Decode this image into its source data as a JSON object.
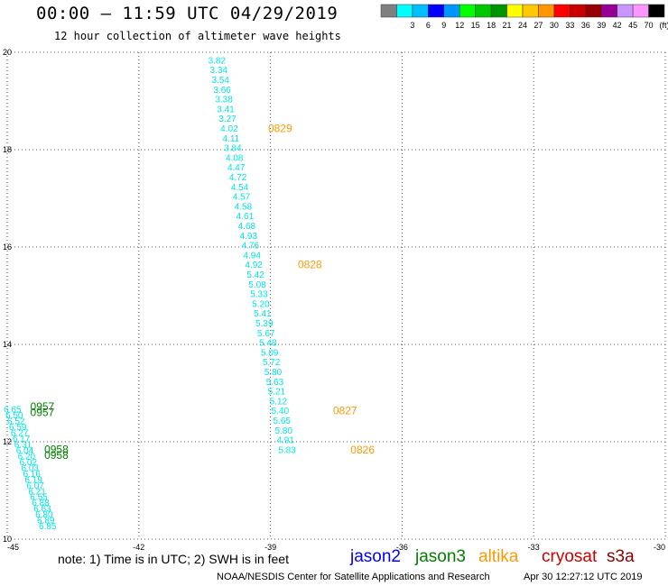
{
  "header": {
    "title": "00:00 – 11:59 UTC 04/29/2019",
    "subtitle": "12 hour collection of altimeter wave heights"
  },
  "legend": {
    "swatches": [
      {
        "color": "#7f7f7f",
        "label": ""
      },
      {
        "color": "#00ffff",
        "label": "3"
      },
      {
        "color": "#00bfff",
        "label": "6"
      },
      {
        "color": "#0000ff",
        "label": "9"
      },
      {
        "color": "#0096ff",
        "label": "12"
      },
      {
        "color": "#00ff00",
        "label": "15"
      },
      {
        "color": "#00c800",
        "label": "18"
      },
      {
        "color": "#009600",
        "label": "21"
      },
      {
        "color": "#ffff00",
        "label": "24"
      },
      {
        "color": "#ffc800",
        "label": "27"
      },
      {
        "color": "#ff9600",
        "label": "30"
      },
      {
        "color": "#ff0000",
        "label": "33"
      },
      {
        "color": "#c80000",
        "label": "36"
      },
      {
        "color": "#960000",
        "label": "39"
      },
      {
        "color": "#960096",
        "label": "42"
      },
      {
        "color": "#c896ff",
        "label": "45"
      },
      {
        "color": "#ff96ff",
        "label": "70"
      },
      {
        "color": "#000000",
        "label": "(ft)"
      }
    ]
  },
  "footer": {
    "note": "note: 1) Time is in UTC; 2) SWH is in feet",
    "credit": "NOAA/NESDIS Center for Satellite Applications and Research",
    "timestamp": "Apr 30 12:27:12 UTC 2019",
    "satellites": [
      {
        "name": "jason2",
        "color": "#0000ff"
      },
      {
        "name": "jason3",
        "color": "#008000"
      },
      {
        "name": "altika",
        "color": "#ff9900"
      },
      {
        "name": "cryosat",
        "color": "#cc0000"
      },
      {
        "name": "s3a",
        "color": "#8b0000"
      }
    ]
  },
  "chart_data": {
    "type": "scatter",
    "title": "00:00 – 11:59 UTC 04/29/2019",
    "subtitle": "12 hour collection of altimeter wave heights",
    "xlim": [
      -45,
      -30
    ],
    "ylim": [
      10,
      20
    ],
    "x_ticks": [
      "-45",
      "-42",
      "-39",
      "-36",
      "-33",
      "-30"
    ],
    "y_ticks": [
      "10",
      "12",
      "14",
      "16",
      "18",
      "20"
    ],
    "grid": true,
    "point_color": "#00e5e5",
    "time_color_altika": "#ff9900",
    "time_color_jason3": "#008000",
    "track_a": {
      "points": [
        {
          "x": -40.22,
          "y": 19.82,
          "v": "3.82"
        },
        {
          "x": -40.18,
          "y": 19.62,
          "v": "3.34"
        },
        {
          "x": -40.14,
          "y": 19.42,
          "v": "3.54"
        },
        {
          "x": -40.1,
          "y": 19.22,
          "v": "3.66"
        },
        {
          "x": -40.06,
          "y": 19.02,
          "v": "3.38"
        },
        {
          "x": -40.02,
          "y": 18.82,
          "v": "3.41"
        },
        {
          "x": -39.98,
          "y": 18.62,
          "v": "3.27"
        },
        {
          "x": -39.94,
          "y": 18.42,
          "v": "4.02"
        },
        {
          "x": -39.9,
          "y": 18.22,
          "v": "4.11"
        },
        {
          "x": -39.86,
          "y": 18.02,
          "v": "3.84"
        },
        {
          "x": -39.82,
          "y": 17.82,
          "v": "4.08"
        },
        {
          "x": -39.78,
          "y": 17.62,
          "v": "4.47"
        },
        {
          "x": -39.74,
          "y": 17.42,
          "v": "4.72"
        },
        {
          "x": -39.7,
          "y": 17.22,
          "v": "4.54"
        },
        {
          "x": -39.66,
          "y": 17.02,
          "v": "4.57"
        },
        {
          "x": -39.62,
          "y": 16.82,
          "v": "4.58"
        },
        {
          "x": -39.58,
          "y": 16.62,
          "v": "4.61"
        },
        {
          "x": -39.54,
          "y": 16.42,
          "v": "4.68"
        },
        {
          "x": -39.5,
          "y": 16.22,
          "v": "4.93"
        },
        {
          "x": -39.46,
          "y": 16.02,
          "v": "4.76"
        },
        {
          "x": -39.42,
          "y": 15.82,
          "v": "4.94"
        },
        {
          "x": -39.38,
          "y": 15.62,
          "v": "4.92"
        },
        {
          "x": -39.34,
          "y": 15.42,
          "v": "5.42"
        },
        {
          "x": -39.3,
          "y": 15.22,
          "v": "5.08"
        },
        {
          "x": -39.26,
          "y": 15.02,
          "v": "5.33"
        },
        {
          "x": -39.22,
          "y": 14.82,
          "v": "5.20"
        },
        {
          "x": -39.18,
          "y": 14.62,
          "v": "5.41"
        },
        {
          "x": -39.14,
          "y": 14.42,
          "v": "5.39"
        },
        {
          "x": -39.1,
          "y": 14.22,
          "v": "5.67"
        },
        {
          "x": -39.06,
          "y": 14.02,
          "v": "5.48"
        },
        {
          "x": -39.02,
          "y": 13.82,
          "v": "5.09"
        },
        {
          "x": -38.98,
          "y": 13.62,
          "v": "5.72"
        },
        {
          "x": -38.94,
          "y": 13.42,
          "v": "5.80"
        },
        {
          "x": -38.9,
          "y": 13.22,
          "v": "5.63"
        },
        {
          "x": -38.86,
          "y": 13.02,
          "v": "5.21"
        },
        {
          "x": -38.82,
          "y": 12.82,
          "v": "5.12"
        },
        {
          "x": -38.78,
          "y": 12.62,
          "v": "5.40"
        },
        {
          "x": -38.74,
          "y": 12.42,
          "v": "5.65"
        },
        {
          "x": -38.7,
          "y": 12.22,
          "v": "5.80"
        },
        {
          "x": -38.66,
          "y": 12.02,
          "v": "4.91"
        },
        {
          "x": -38.62,
          "y": 11.82,
          "v": "5.83"
        }
      ],
      "times": [
        {
          "x": -38.78,
          "y": 18.42,
          "v": "0829"
        },
        {
          "x": -38.1,
          "y": 15.62,
          "v": "0828"
        },
        {
          "x": -37.3,
          "y": 12.62,
          "v": "0827"
        },
        {
          "x": -36.9,
          "y": 11.82,
          "v": "0826"
        }
      ]
    },
    "track_b": {
      "points": [
        {
          "x": -44.88,
          "y": 12.65,
          "v": "6.65"
        },
        {
          "x": -44.84,
          "y": 12.53,
          "v": "6.50"
        },
        {
          "x": -44.8,
          "y": 12.41,
          "v": "6.52"
        },
        {
          "x": -44.76,
          "y": 12.29,
          "v": "6.59"
        },
        {
          "x": -44.72,
          "y": 12.17,
          "v": "6.27"
        },
        {
          "x": -44.68,
          "y": 12.05,
          "v": "6.17"
        },
        {
          "x": -44.64,
          "y": 11.93,
          "v": "6.31"
        },
        {
          "x": -44.6,
          "y": 11.81,
          "v": "6.04"
        },
        {
          "x": -44.56,
          "y": 11.69,
          "v": "6.20"
        },
        {
          "x": -44.52,
          "y": 11.57,
          "v": "6.02"
        },
        {
          "x": -44.48,
          "y": 11.45,
          "v": "6.03"
        },
        {
          "x": -44.44,
          "y": 11.33,
          "v": "6.16"
        },
        {
          "x": -44.4,
          "y": 11.21,
          "v": "6.19"
        },
        {
          "x": -44.36,
          "y": 11.09,
          "v": "6.07"
        },
        {
          "x": -44.32,
          "y": 10.97,
          "v": "6.21"
        },
        {
          "x": -44.28,
          "y": 10.85,
          "v": "6.55"
        },
        {
          "x": -44.24,
          "y": 10.73,
          "v": "6.88"
        },
        {
          "x": -44.2,
          "y": 10.61,
          "v": "6.63"
        },
        {
          "x": -44.16,
          "y": 10.49,
          "v": "6.80"
        },
        {
          "x": -44.12,
          "y": 10.37,
          "v": "6.89"
        },
        {
          "x": -44.08,
          "y": 10.25,
          "v": "6.85"
        }
      ],
      "times": [
        {
          "x": -44.2,
          "y": 12.71,
          "v": "0957"
        },
        {
          "x": -44.2,
          "y": 12.59,
          "v": "0957"
        },
        {
          "x": -43.88,
          "y": 11.83,
          "v": "0958"
        },
        {
          "x": -43.88,
          "y": 11.71,
          "v": "0958"
        }
      ]
    }
  }
}
